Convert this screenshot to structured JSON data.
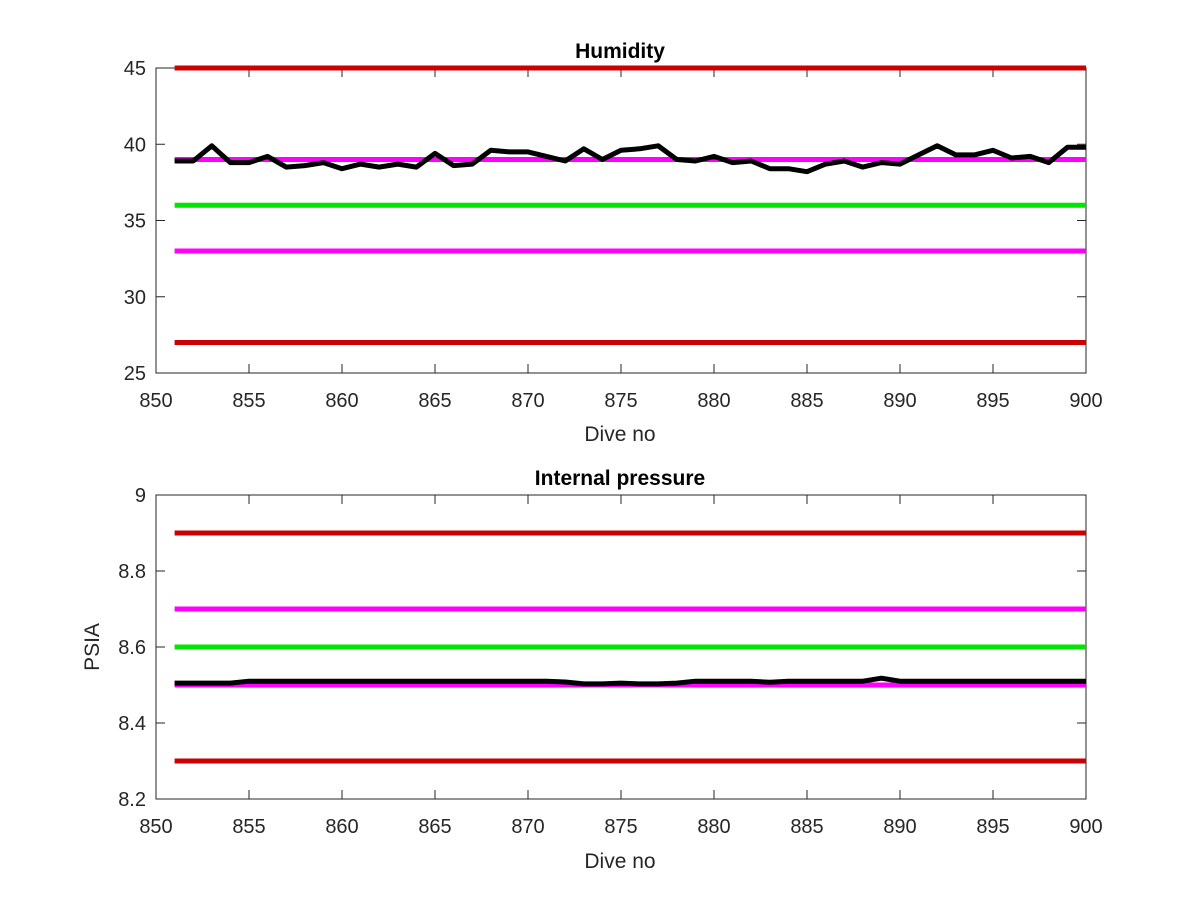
{
  "chart_data": [
    {
      "type": "line",
      "title": "Humidity",
      "xlabel": "Dive no",
      "ylabel": "",
      "xlim": [
        850,
        900
      ],
      "ylim": [
        25,
        45
      ],
      "xticks": [
        850,
        855,
        860,
        865,
        870,
        875,
        880,
        885,
        890,
        895,
        900
      ],
      "yticks": [
        25,
        30,
        35,
        40,
        45
      ],
      "grid": false,
      "reference_lines": [
        {
          "y": 45,
          "color": "#cc0000",
          "x": [
            851,
            900
          ]
        },
        {
          "y": 39,
          "color": "#ff00ff",
          "x": [
            851,
            900
          ]
        },
        {
          "y": 36,
          "color": "#00e600",
          "x": [
            851,
            900
          ]
        },
        {
          "y": 33,
          "color": "#ff00ff",
          "x": [
            851,
            900
          ]
        },
        {
          "y": 27,
          "color": "#cc0000",
          "x": [
            851,
            900
          ]
        }
      ],
      "series": [
        {
          "color": "#000000",
          "x": [
            851,
            852,
            853,
            854,
            855,
            856,
            857,
            858,
            859,
            860,
            861,
            862,
            863,
            864,
            865,
            866,
            867,
            868,
            869,
            870,
            871,
            872,
            873,
            874,
            875,
            876,
            877,
            878,
            879,
            880,
            881,
            882,
            883,
            884,
            885,
            886,
            887,
            888,
            889,
            890,
            891,
            892,
            893,
            894,
            895,
            896,
            897,
            898,
            899,
            900
          ],
          "values": [
            38.9,
            38.9,
            39.9,
            38.8,
            38.8,
            39.2,
            38.5,
            38.6,
            38.8,
            38.4,
            38.7,
            38.5,
            38.7,
            38.5,
            39.4,
            38.6,
            38.7,
            39.6,
            39.5,
            39.5,
            39.2,
            38.9,
            39.7,
            39.0,
            39.6,
            39.7,
            39.9,
            39.0,
            38.9,
            39.2,
            38.8,
            38.9,
            38.4,
            38.4,
            38.2,
            38.7,
            38.9,
            38.5,
            38.8,
            38.7,
            39.3,
            39.9,
            39.3,
            39.3,
            39.6,
            39.1,
            39.2,
            38.8,
            39.8,
            39.8
          ]
        }
      ]
    },
    {
      "type": "line",
      "title": "Internal pressure",
      "xlabel": "Dive no",
      "ylabel": "PSIA",
      "xlim": [
        850,
        900
      ],
      "ylim": [
        8.2,
        9
      ],
      "xticks": [
        850,
        855,
        860,
        865,
        870,
        875,
        880,
        885,
        890,
        895,
        900
      ],
      "yticks": [
        "8.2",
        "8.4",
        "8.6",
        "8.8",
        "9"
      ],
      "grid": false,
      "reference_lines": [
        {
          "y": 8.9,
          "color": "#cc0000",
          "x": [
            851,
            900
          ]
        },
        {
          "y": 8.7,
          "color": "#ff00ff",
          "x": [
            851,
            900
          ]
        },
        {
          "y": 8.6,
          "color": "#00e600",
          "x": [
            851,
            900
          ]
        },
        {
          "y": 8.5,
          "color": "#ff00ff",
          "x": [
            851,
            900
          ]
        },
        {
          "y": 8.3,
          "color": "#cc0000",
          "x": [
            851,
            900
          ]
        }
      ],
      "series": [
        {
          "color": "#000000",
          "x": [
            851,
            852,
            853,
            854,
            855,
            856,
            857,
            858,
            859,
            860,
            861,
            862,
            863,
            864,
            865,
            866,
            867,
            868,
            869,
            870,
            871,
            872,
            873,
            874,
            875,
            876,
            877,
            878,
            879,
            880,
            881,
            882,
            883,
            884,
            885,
            886,
            887,
            888,
            889,
            890,
            891,
            892,
            893,
            894,
            895,
            896,
            897,
            898,
            899,
            900
          ],
          "values": [
            8.505,
            8.505,
            8.505,
            8.505,
            8.51,
            8.51,
            8.51,
            8.51,
            8.51,
            8.51,
            8.51,
            8.51,
            8.51,
            8.51,
            8.51,
            8.51,
            8.51,
            8.51,
            8.51,
            8.51,
            8.51,
            8.508,
            8.503,
            8.503,
            8.505,
            8.503,
            8.503,
            8.505,
            8.51,
            8.51,
            8.51,
            8.51,
            8.507,
            8.51,
            8.51,
            8.51,
            8.51,
            8.51,
            8.518,
            8.51,
            8.51,
            8.51,
            8.51,
            8.51,
            8.51,
            8.51,
            8.51,
            8.51,
            8.51,
            8.51
          ]
        }
      ]
    }
  ]
}
